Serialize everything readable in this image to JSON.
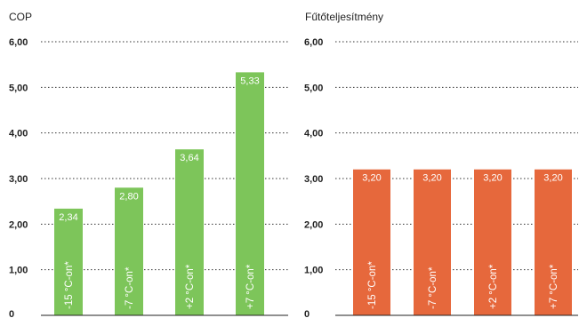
{
  "chart_data": [
    {
      "type": "bar",
      "title": "COP",
      "categories": [
        "-15 °C-on*",
        "-7 °C-on*",
        "+2 °C-on*",
        "+7 °C-on*"
      ],
      "values": [
        2.34,
        2.8,
        3.64,
        5.33
      ],
      "value_labels": [
        "2,34",
        "2,80",
        "3,64",
        "5,33"
      ],
      "yticks": [
        "0",
        "1,00",
        "2,00",
        "3,00",
        "4,00",
        "5,00",
        "6,00"
      ],
      "ylim": [
        0,
        6
      ],
      "grid": true,
      "color": "#7dc55a"
    },
    {
      "type": "bar",
      "title": "Fűtőteljesítmény",
      "categories": [
        "-15 °C-on*",
        "-7 °C-on*",
        "+2 °C-on*",
        "+7 °C-on*"
      ],
      "values": [
        3.2,
        3.2,
        3.2,
        3.2
      ],
      "value_labels": [
        "3,20",
        "3,20",
        "3,20",
        "3,20"
      ],
      "yticks": [
        "0",
        "1,00",
        "2,00",
        "3,00",
        "4,00",
        "5,00",
        "6,00"
      ],
      "ylim": [
        0,
        6
      ],
      "grid": true,
      "color": "#e6683c"
    }
  ]
}
